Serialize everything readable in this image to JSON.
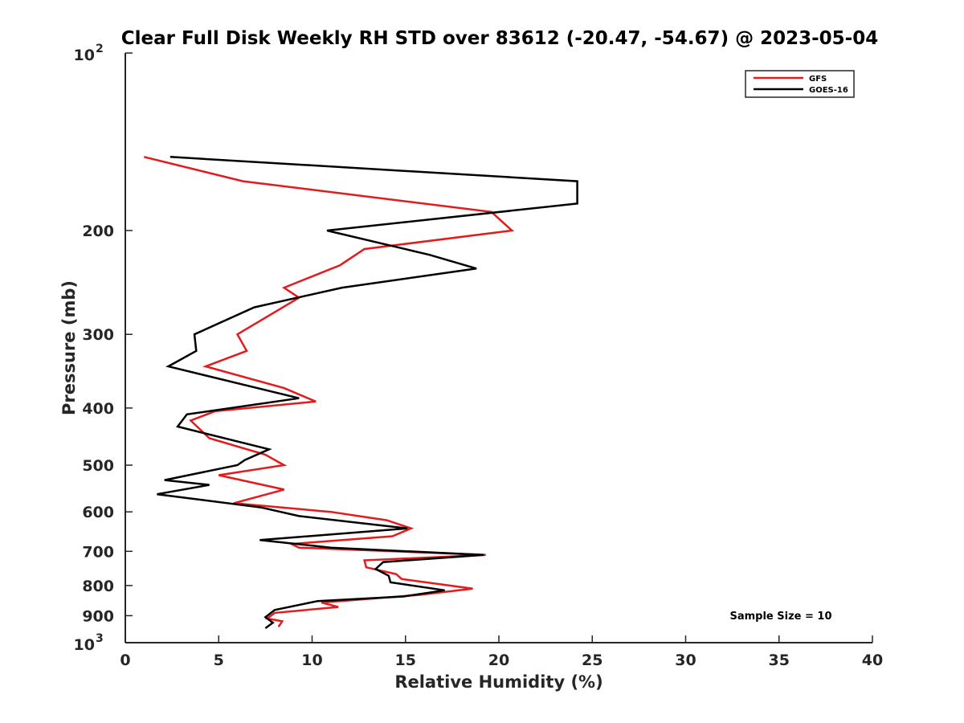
{
  "chart_data": {
    "type": "line",
    "title": "Clear Full Disk Weekly RH STD over 83612 (-20.47, -54.67) @ 2023-05-04",
    "xlabel": "Relative Humidity (%)",
    "ylabel": "Pressure (mb)",
    "xlim": [
      0,
      40
    ],
    "ylim": [
      100,
      1000
    ],
    "yscale": "log",
    "y_reversed": true,
    "grid": false,
    "legend_position": "top-right",
    "x_ticks": [
      "0",
      "5",
      "10",
      "15",
      "20",
      "25",
      "30",
      "35",
      "40"
    ],
    "y_ticks": [
      {
        "value": 100,
        "label": "10",
        "sup": "2"
      },
      {
        "value": 200,
        "label": "200"
      },
      {
        "value": 300,
        "label": "300"
      },
      {
        "value": 400,
        "label": "400"
      },
      {
        "value": 500,
        "label": "500"
      },
      {
        "value": 600,
        "label": "600"
      },
      {
        "value": 700,
        "label": "700"
      },
      {
        "value": 800,
        "label": "800"
      },
      {
        "value": 900,
        "label": "900"
      },
      {
        "value": 1000,
        "label": "10",
        "sup": "3"
      }
    ],
    "annotation": "Sample Size = 10",
    "series": [
      {
        "name": "GFS",
        "color": "#e41a1c",
        "points": [
          [
            1.0,
            150
          ],
          [
            6.3,
            165
          ],
          [
            19.6,
            186
          ],
          [
            20.7,
            200
          ],
          [
            12.8,
            215
          ],
          [
            11.5,
            229
          ],
          [
            8.5,
            250
          ],
          [
            9.3,
            260
          ],
          [
            6.0,
            300
          ],
          [
            6.5,
            320
          ],
          [
            4.3,
            340
          ],
          [
            8.5,
            370
          ],
          [
            10.2,
            390
          ],
          [
            4.8,
            405
          ],
          [
            3.5,
            420
          ],
          [
            4.5,
            450
          ],
          [
            7.5,
            480
          ],
          [
            8.0,
            490
          ],
          [
            8.5,
            500
          ],
          [
            5.0,
            520
          ],
          [
            8.5,
            550
          ],
          [
            5.8,
            580
          ],
          [
            11.0,
            600
          ],
          [
            14.0,
            620
          ],
          [
            15.3,
            640
          ],
          [
            14.3,
            660
          ],
          [
            8.9,
            680
          ],
          [
            9.3,
            690
          ],
          [
            19.3,
            710
          ],
          [
            12.8,
            725
          ],
          [
            12.9,
            745
          ],
          [
            14.5,
            765
          ],
          [
            14.8,
            780
          ],
          [
            18.6,
            810
          ],
          [
            15.7,
            830
          ],
          [
            10.5,
            855
          ],
          [
            11.4,
            870
          ],
          [
            8.0,
            890
          ],
          [
            7.6,
            910
          ],
          [
            8.4,
            920
          ],
          [
            8.2,
            940
          ]
        ]
      },
      {
        "name": "GOES-16",
        "color": "#000000",
        "points": [
          [
            2.4,
            150
          ],
          [
            24.2,
            165
          ],
          [
            24.2,
            180
          ],
          [
            10.8,
            200
          ],
          [
            16.3,
            220
          ],
          [
            18.8,
            232
          ],
          [
            11.6,
            250
          ],
          [
            6.9,
            270
          ],
          [
            3.7,
            300
          ],
          [
            3.8,
            320
          ],
          [
            2.3,
            340
          ],
          [
            9.3,
            385
          ],
          [
            3.3,
            410
          ],
          [
            2.8,
            430
          ],
          [
            7.7,
            470
          ],
          [
            6.4,
            490
          ],
          [
            6.0,
            500
          ],
          [
            2.1,
            530
          ],
          [
            4.5,
            540
          ],
          [
            1.7,
            560
          ],
          [
            7.3,
            590
          ],
          [
            9.3,
            610
          ],
          [
            15.1,
            640
          ],
          [
            7.2,
            670
          ],
          [
            11.0,
            690
          ],
          [
            19.2,
            710
          ],
          [
            13.8,
            730
          ],
          [
            13.4,
            750
          ],
          [
            14.1,
            770
          ],
          [
            14.2,
            790
          ],
          [
            17.1,
            815
          ],
          [
            14.9,
            835
          ],
          [
            10.3,
            850
          ],
          [
            8.0,
            880
          ],
          [
            7.5,
            905
          ],
          [
            7.9,
            925
          ],
          [
            7.5,
            945
          ]
        ]
      }
    ]
  }
}
